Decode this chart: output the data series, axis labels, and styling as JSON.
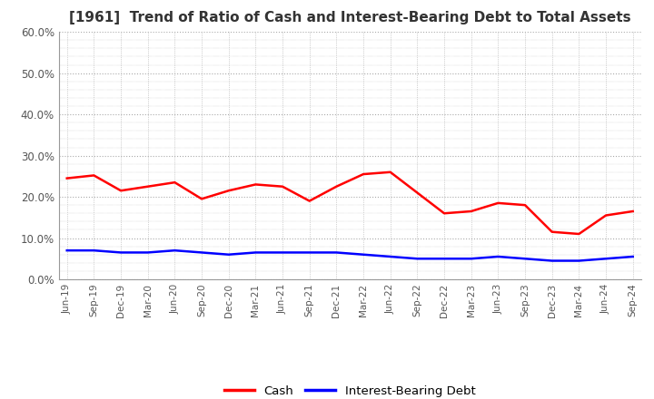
{
  "title": "[1961]  Trend of Ratio of Cash and Interest-Bearing Debt to Total Assets",
  "x_labels": [
    "Jun-19",
    "Sep-19",
    "Dec-19",
    "Mar-20",
    "Jun-20",
    "Sep-20",
    "Dec-20",
    "Mar-21",
    "Jun-21",
    "Sep-21",
    "Dec-21",
    "Mar-22",
    "Jun-22",
    "Sep-22",
    "Dec-22",
    "Mar-23",
    "Jun-23",
    "Sep-23",
    "Dec-23",
    "Mar-24",
    "Jun-24",
    "Sep-24"
  ],
  "cash": [
    24.5,
    25.2,
    21.5,
    22.5,
    23.5,
    19.5,
    21.5,
    23.0,
    22.5,
    19.0,
    22.5,
    25.5,
    26.0,
    21.0,
    16.0,
    16.5,
    18.5,
    18.0,
    11.5,
    11.0,
    15.5,
    16.5
  ],
  "debt": [
    7.0,
    7.0,
    6.5,
    6.5,
    7.0,
    6.5,
    6.0,
    6.5,
    6.5,
    6.5,
    6.5,
    6.0,
    5.5,
    5.0,
    5.0,
    5.0,
    5.5,
    5.0,
    4.5,
    4.5,
    5.0,
    5.5
  ],
  "cash_color": "#ff0000",
  "debt_color": "#0000ff",
  "ylim": [
    0,
    60
  ],
  "yticks": [
    0,
    10,
    20,
    30,
    40,
    50,
    60
  ],
  "grid_color": "#aaaaaa",
  "background_color": "#ffffff",
  "title_fontsize": 11,
  "legend_labels": [
    "Cash",
    "Interest-Bearing Debt"
  ]
}
